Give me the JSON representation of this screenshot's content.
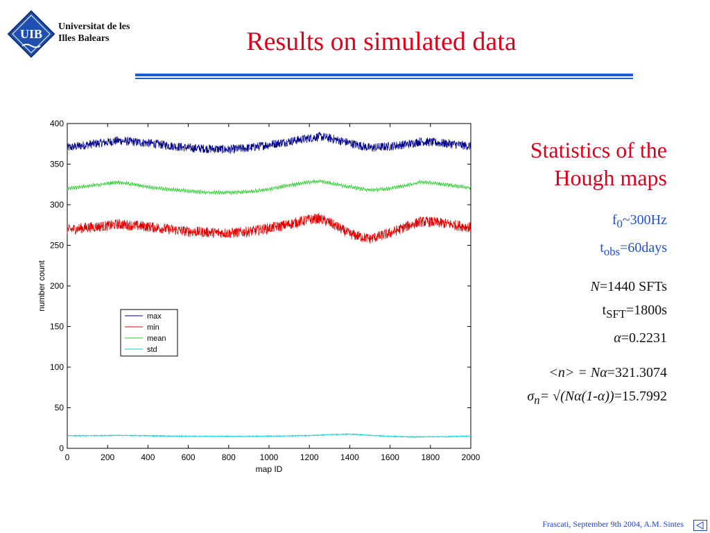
{
  "logo": {
    "emblem_text": "UIB",
    "line1": "Universitat de les",
    "line2": "Illes Balears"
  },
  "slide_title": "Results on simulated data",
  "stats": {
    "heading_line1": "Statistics of the",
    "heading_line2": "Hough maps",
    "f0": {
      "sym": "f",
      "sub": "0",
      "rest": "~300Hz"
    },
    "tobs": {
      "sym": "t",
      "sub": "obs",
      "rest": "=60days"
    },
    "N": {
      "sym": "N",
      "rest": "=1440 SFTs"
    },
    "tsft": {
      "sym": "t",
      "sub": "SFT",
      "rest": "=1800s"
    },
    "alpha": {
      "sym": "α",
      "rest": "=0.2231"
    },
    "mean": {
      "lhs": "<n> = Nα",
      "rest": "=321.3074"
    },
    "sigma": {
      "sym": "σ",
      "sub": "n",
      "mid": "= √(Nα(1-α))",
      "rest": "=15.7992"
    }
  },
  "footer": "Frascati, September  9th 2004, A.M. Sintes",
  "colors": {
    "max": "#00008b",
    "min": "#e00000",
    "mean": "#22cc22",
    "std": "#00d0d0",
    "title": "#e0001a",
    "accent": "#1b5ed6"
  },
  "chart_data": {
    "type": "line",
    "xlabel": "map ID",
    "ylabel": "number count",
    "xlim": [
      0,
      2000
    ],
    "ylim": [
      0,
      400
    ],
    "xticks": [
      0,
      200,
      400,
      600,
      800,
      1000,
      1200,
      1400,
      1600,
      1800,
      2000
    ],
    "yticks": [
      0,
      50,
      100,
      150,
      200,
      250,
      300,
      350,
      400
    ],
    "grid": false,
    "legend_position": "left-middle",
    "x": [
      0,
      100,
      200,
      250,
      300,
      400,
      500,
      600,
      700,
      800,
      900,
      1000,
      1100,
      1200,
      1250,
      1300,
      1400,
      1500,
      1600,
      1700,
      1750,
      1800,
      1900,
      2000
    ],
    "series": [
      {
        "name": "max",
        "values": [
          370,
          374,
          377,
          379,
          378,
          376,
          373,
          370,
          369,
          368,
          370,
          374,
          378,
          382,
          384,
          382,
          376,
          370,
          372,
          375,
          378,
          377,
          375,
          372
        ]
      },
      {
        "name": "min",
        "values": [
          269,
          272,
          274,
          276,
          275,
          273,
          270,
          267,
          266,
          265,
          267,
          271,
          276,
          282,
          283,
          278,
          264,
          258,
          265,
          275,
          279,
          279,
          276,
          272
        ]
      },
      {
        "name": "mean",
        "values": [
          320,
          323,
          326,
          328,
          326,
          322,
          319,
          317,
          315,
          315,
          316,
          319,
          324,
          328,
          329,
          327,
          322,
          318,
          320,
          325,
          328,
          327,
          324,
          321
        ]
      },
      {
        "name": "std",
        "values": [
          15.5,
          15.6,
          15.7,
          15.9,
          15.8,
          15.5,
          15.2,
          14.9,
          14.8,
          14.7,
          14.8,
          15.0,
          15.3,
          15.8,
          16.2,
          16.9,
          17.5,
          16.0,
          14.8,
          14.2,
          14.1,
          14.3,
          14.6,
          15.0
        ]
      }
    ]
  }
}
